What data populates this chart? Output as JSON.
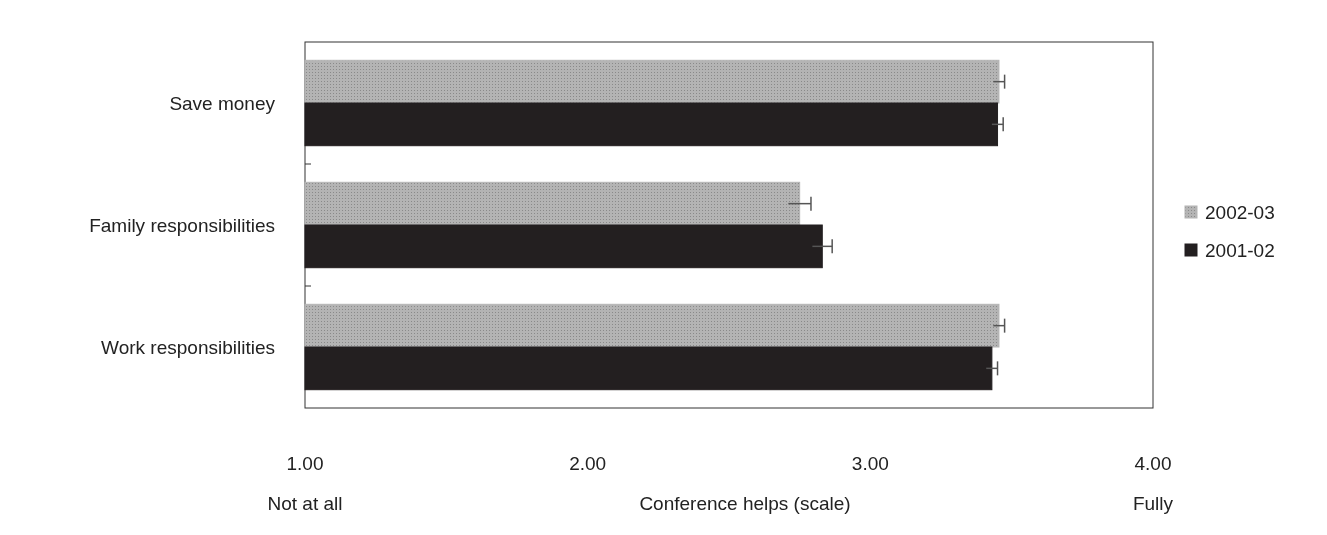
{
  "chart_data": {
    "type": "bar",
    "orientation": "horizontal",
    "xlabel": "Conference helps (scale)",
    "categories": [
      "Save money",
      "Family responsibilities",
      "Work responsibilities"
    ],
    "series": [
      {
        "name": "2002-03",
        "color": "#b4b4b4",
        "values": [
          3.455,
          2.75,
          3.455
        ],
        "errors": [
          0.02,
          0.04,
          0.02
        ]
      },
      {
        "name": "2001-02",
        "color": "#231f20",
        "values": [
          3.45,
          2.83,
          3.43
        ],
        "errors": [
          0.02,
          0.035,
          0.02
        ]
      }
    ],
    "xlim": [
      1,
      4
    ],
    "xticks": [
      {
        "value": 1,
        "label": "1.00"
      },
      {
        "value": 2,
        "label": "2.00"
      },
      {
        "value": 3,
        "label": "3.00"
      },
      {
        "value": 4,
        "label": "4.00"
      }
    ],
    "annotations": [
      "Not at all",
      "Fully"
    ],
    "legend": "right",
    "grid": false
  }
}
